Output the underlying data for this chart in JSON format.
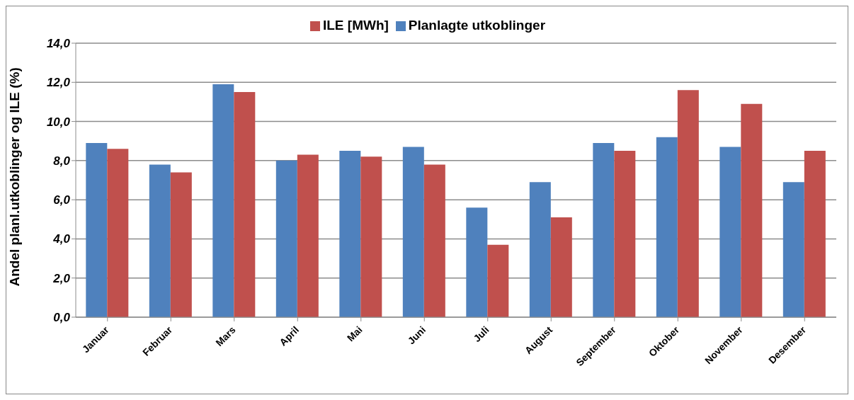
{
  "chart_data": {
    "type": "bar",
    "ylabel": "Andel planl.utkoblinger og ILE (%)",
    "categories": [
      "Januar",
      "Februar",
      "Mars",
      "April",
      "Mai",
      "Juni",
      "Juli",
      "August",
      "September",
      "Oktober",
      "November",
      "Desember"
    ],
    "series": [
      {
        "name": "Planlagte utkoblinger",
        "color": "#4f81bd",
        "values": [
          8.9,
          7.8,
          11.9,
          8.0,
          8.5,
          8.7,
          5.6,
          6.9,
          8.9,
          9.2,
          8.7,
          6.9
        ]
      },
      {
        "name": "ILE [MWh]",
        "color": "#c0504d",
        "values": [
          8.6,
          7.4,
          11.5,
          8.3,
          8.2,
          7.8,
          3.7,
          5.1,
          8.5,
          11.6,
          10.9,
          8.5
        ]
      }
    ],
    "ylim": [
      0,
      14
    ],
    "yticks": [
      {
        "value": 0,
        "label": "0,0"
      },
      {
        "value": 2,
        "label": "2,0"
      },
      {
        "value": 4,
        "label": "4,0"
      },
      {
        "value": 6,
        "label": "6,0"
      },
      {
        "value": 8,
        "label": "8,0"
      },
      {
        "value": 10,
        "label": "10,0"
      },
      {
        "value": 12,
        "label": "12,0"
      },
      {
        "value": 14,
        "label": "14,0"
      }
    ],
    "grid": "y",
    "legend": "top"
  }
}
